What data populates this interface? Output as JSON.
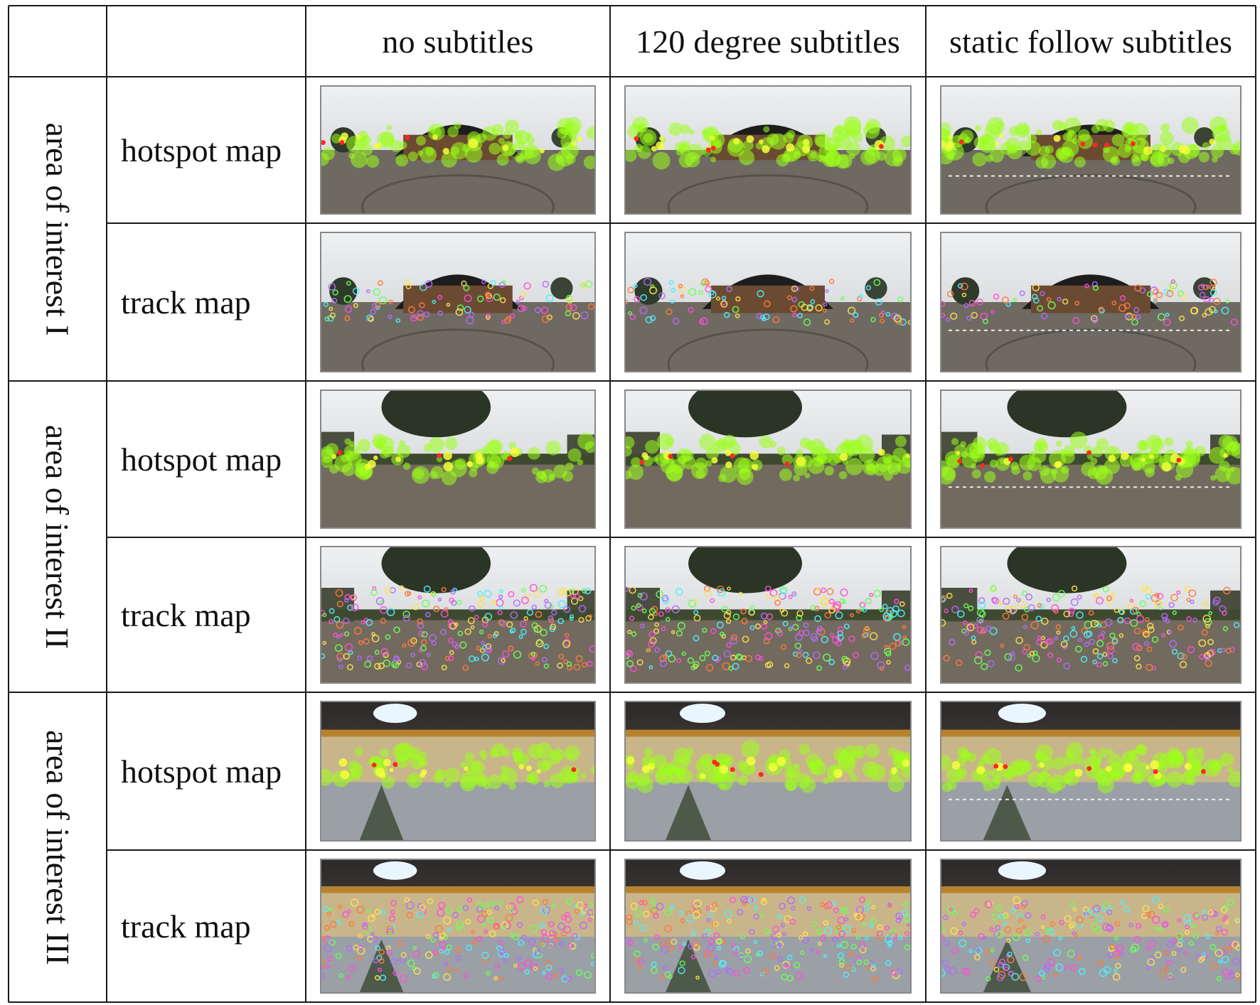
{
  "table": {
    "columns": [
      "no subtitles",
      "120 degree subtitles",
      "static follow subtitles"
    ],
    "areas": [
      {
        "label": "area of interest I",
        "scene": "building",
        "rows": [
          "hotspot map",
          "track map"
        ]
      },
      {
        "label": "area of interest II",
        "scene": "tree",
        "rows": [
          "hotspot map",
          "track map"
        ]
      },
      {
        "label": "area of interest III",
        "scene": "hall",
        "rows": [
          "hotspot map",
          "track map"
        ]
      }
    ]
  },
  "colors": {
    "hotspot_green": "#9cff1a",
    "hotspot_yellow": "#f5ff3a",
    "hotspot_red": "#ff2a1a",
    "track_palette": [
      "#ff4fd8",
      "#4ff0ff",
      "#ffe14f",
      "#6cff5a",
      "#ff7a3d",
      "#b16bff"
    ]
  },
  "icons": {
    "scene-thumbnail": "panorama-image"
  }
}
